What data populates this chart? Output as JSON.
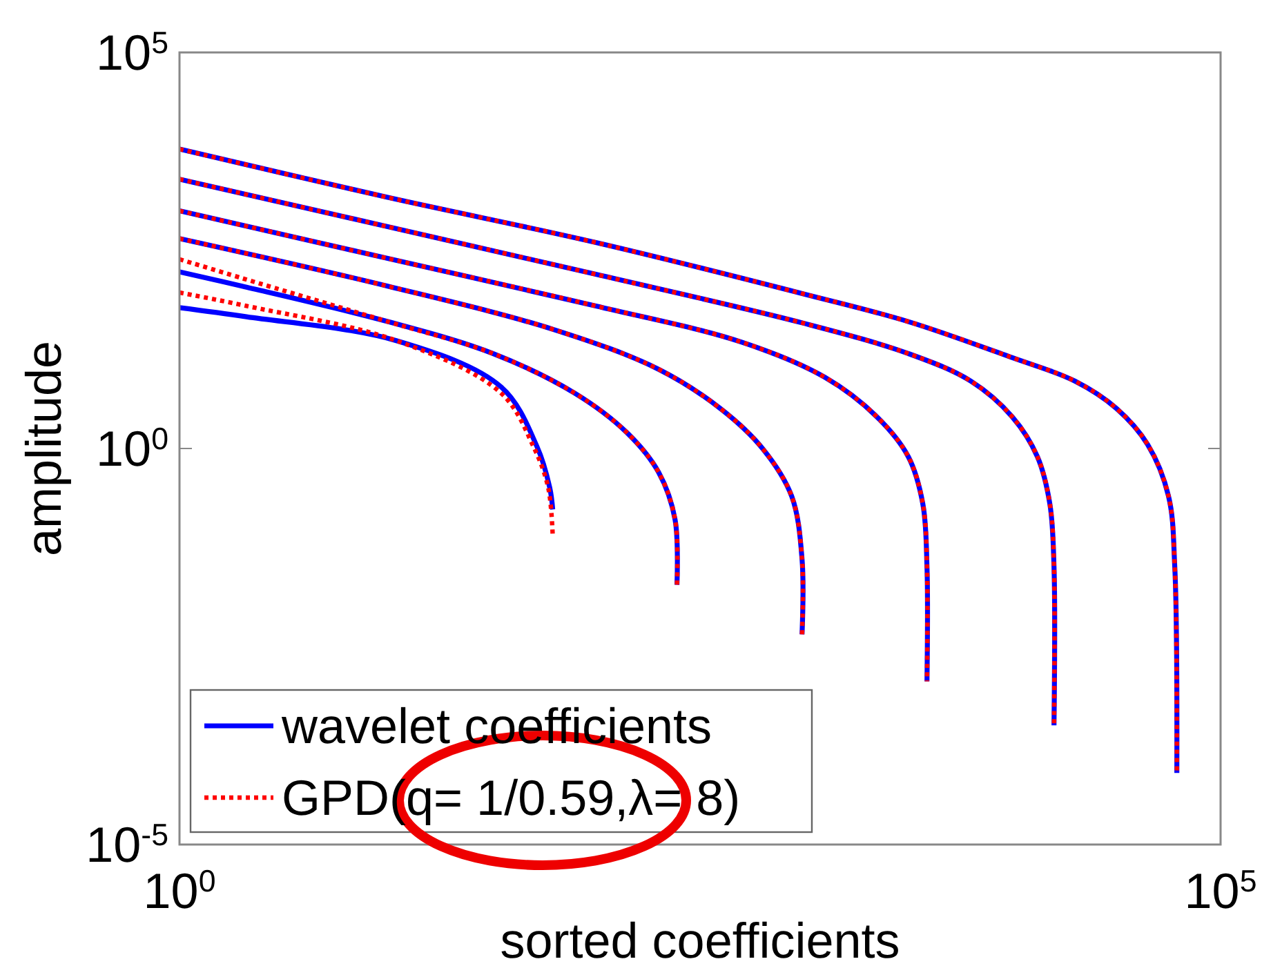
{
  "chart_data": {
    "type": "line",
    "xlabel": "sorted coefficients",
    "ylabel": "amplitude",
    "log": "xy",
    "grid": false,
    "legend": "bottom left",
    "marker": "none",
    "xlim": [
      1,
      100000
    ],
    "xticks": [
      {
        "value": 1,
        "label": "10$^{0}$"
      },
      {
        "value": 100000,
        "label": "10$^{5}$"
      }
    ],
    "ylim": [
      1e-05,
      100000
    ],
    "yticks": [
      {
        "value": 1e-05,
        "label": "10$^{-5}$"
      },
      {
        "value": 1,
        "label": "10$^{0}$"
      },
      {
        "value": 100000,
        "label": "10$^{5}$"
      }
    ],
    "series": [
      {
        "name": "wavelet coefficients",
        "color": "#0000ff",
        "line_style": "solid",
        "x": [
          1,
          10,
          100,
          1000,
          3162,
          10000,
          19953,
          31623,
          44668,
          56234,
          60256,
          61660
        ],
        "values": [
          6026,
          1479,
          398,
          89,
          40,
          14,
          7.1,
          3.2,
          1.12,
          0.25,
          0.032,
          8e-05
        ]
      },
      {
        "color": "#0000ff",
        "line_style": "solid",
        "x": [
          1,
          10,
          100,
          1000,
          3162,
          6310,
          10000,
          13183,
          15136,
          15849,
          15849
        ],
        "values": [
          2512,
          631,
          158,
          38,
          15.8,
          7.1,
          2.5,
          0.79,
          0.2,
          0.032,
          0.00032
        ]
      },
      {
        "color": "#0000ff",
        "line_style": "solid",
        "x": [
          1,
          10,
          100,
          501,
          1259,
          2239,
          3162,
          3715,
          3890,
          3890
        ],
        "values": [
          1000,
          251,
          63,
          22,
          7.9,
          2.5,
          0.79,
          0.2,
          0.032,
          0.00115
        ]
      },
      {
        "color": "#0000ff",
        "line_style": "solid",
        "x": [
          1,
          10,
          63,
          200,
          398,
          631,
          871,
          977,
          977
        ],
        "values": [
          447,
          112,
          31.6,
          10,
          3.16,
          1,
          0.25,
          0.04,
          0.0045
        ]
      },
      {
        "color": "#0000ff",
        "line_style": "solid",
        "x": [
          1,
          2,
          10,
          32,
          79,
          141,
          200,
          240,
          245
        ],
        "values": [
          170,
          112,
          40,
          15.8,
          5,
          1.58,
          0.5,
          0.126,
          0.019
        ]
      },
      {
        "color": "#0000ff",
        "line_style": "solid",
        "x": [
          1,
          2.1,
          11,
          35,
          52,
          60,
          62
        ],
        "values": [
          60,
          46,
          23,
          6,
          1.07,
          0.32,
          0.17
        ]
      },
      {
        "name": "GPD(q= 1/0.59,λ= 8)",
        "color": "#ff0000",
        "line_style": "dotted",
        "x": [
          1,
          10,
          100,
          1000,
          3162,
          10000,
          19953,
          31623,
          44668,
          56234,
          60256,
          61660
        ],
        "values": [
          6026,
          1479,
          398,
          89,
          40,
          14,
          7.1,
          3.2,
          1.12,
          0.25,
          0.032,
          8e-05
        ]
      },
      {
        "color": "#ff0000",
        "line_style": "dotted",
        "x": [
          1,
          10,
          100,
          1000,
          3162,
          6310,
          10000,
          13183,
          15136,
          15849,
          15849
        ],
        "values": [
          2512,
          631,
          158,
          38,
          15.8,
          7.1,
          2.5,
          0.79,
          0.2,
          0.032,
          0.00032
        ]
      },
      {
        "color": "#ff0000",
        "line_style": "dotted",
        "x": [
          1,
          10,
          100,
          501,
          1259,
          2239,
          3162,
          3715,
          3890,
          3890
        ],
        "values": [
          1000,
          251,
          63,
          22,
          7.9,
          2.5,
          0.79,
          0.2,
          0.032,
          0.00115
        ]
      },
      {
        "color": "#ff0000",
        "line_style": "dotted",
        "x": [
          1,
          10,
          63,
          200,
          398,
          631,
          871,
          977,
          977
        ],
        "values": [
          447,
          112,
          31.6,
          10,
          3.16,
          1,
          0.25,
          0.04,
          0.0045
        ]
      },
      {
        "color": "#ff0000",
        "line_style": "dotted",
        "x": [
          1,
          2,
          10,
          32,
          79,
          141,
          200,
          240,
          245
        ],
        "values": [
          245,
          141,
          40,
          15.8,
          5,
          1.58,
          0.5,
          0.126,
          0.019
        ]
      },
      {
        "color": "#ff0000",
        "line_style": "dotted",
        "x": [
          1,
          2.1,
          11,
          35,
          50,
          59,
          62
        ],
        "values": [
          93,
          63,
          23,
          5,
          1.07,
          0.32,
          0.079
        ]
      }
    ]
  }
}
